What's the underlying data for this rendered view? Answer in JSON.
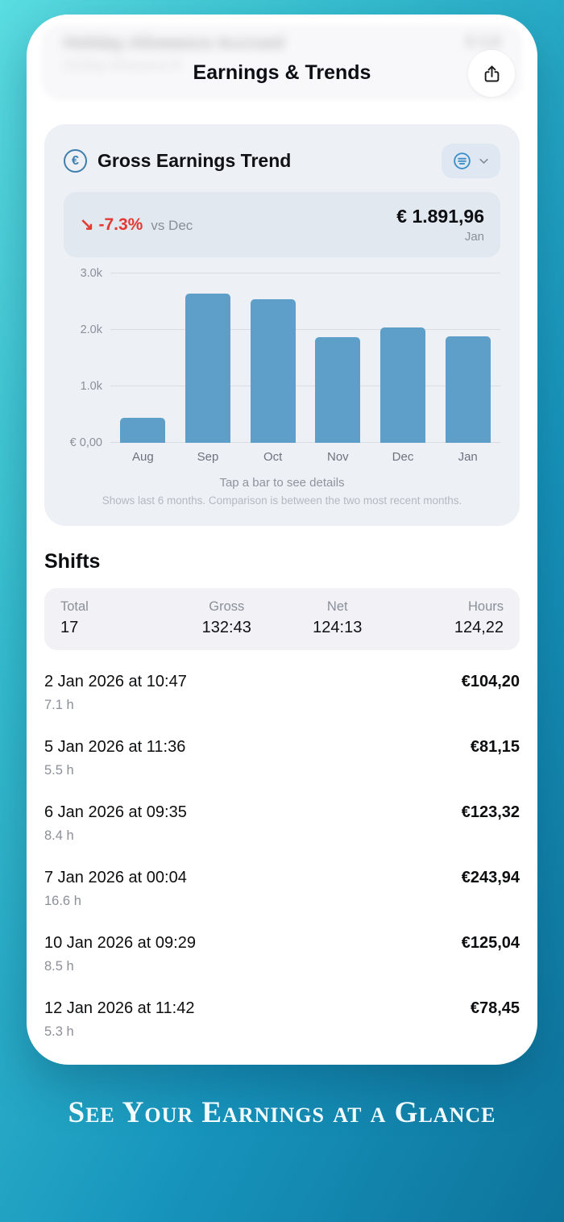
{
  "page": {
    "caption": "See Your Earnings at a Glance",
    "colors": {
      "background_gradient_start": "#5adde1",
      "background_gradient_end": "#0d739b",
      "bar": "#5d9fc9",
      "delta_negative": "#e23a33",
      "accent_blue": "#3d8fc8"
    }
  },
  "phone": {
    "nav": {
      "title": "Earnings & Trends",
      "blurred_item": {
        "title": "Holiday Allowance Accrued",
        "subtitle": "Holiday Allowance B",
        "amount_top": "€ 1.0",
        "amount_bottom": "€ 8"
      }
    },
    "trend_card": {
      "title": "Gross Earnings Trend",
      "euro_symbol": "€",
      "summary": {
        "delta_arrow": "↘",
        "delta": "-7.3%",
        "vs_label": "vs Dec",
        "amount": "€ 1.891,96",
        "period": "Jan"
      },
      "hint": "Tap a bar to see details",
      "note": "Shows last 6 months. Comparison is between the two most recent months."
    },
    "chart_data": {
      "type": "bar",
      "title": "Gross Earnings Trend",
      "categories": [
        "Aug",
        "Sep",
        "Oct",
        "Nov",
        "Dec",
        "Jan"
      ],
      "values": [
        450,
        2640,
        2550,
        1870,
        2040,
        1892
      ],
      "y_ticks": [
        {
          "label": "3.0k",
          "value": 3000
        },
        {
          "label": "2.0k",
          "value": 2000
        },
        {
          "label": "1.0k",
          "value": 1000
        },
        {
          "label": "€ 0,00",
          "value": 0
        }
      ],
      "ylim": [
        0,
        3000
      ],
      "grid": true,
      "legend": false,
      "bar_color": "#5d9fc9"
    },
    "shifts": {
      "heading": "Shifts",
      "summary_columns": [
        {
          "label": "Total",
          "value": "17",
          "align": "left"
        },
        {
          "label": "Gross",
          "value": "132:43",
          "align": "center"
        },
        {
          "label": "Net",
          "value": "124:13",
          "align": "center"
        },
        {
          "label": "Hours",
          "value": "124,22",
          "align": "right"
        }
      ],
      "rows": [
        {
          "datetime": "2 Jan 2026 at 10:47",
          "duration": "7.1 h",
          "amount": "€104,20"
        },
        {
          "datetime": "5 Jan 2026 at 11:36",
          "duration": "5.5 h",
          "amount": "€81,15"
        },
        {
          "datetime": "6 Jan 2026 at 09:35",
          "duration": "8.4 h",
          "amount": "€123,32"
        },
        {
          "datetime": "7 Jan 2026 at 00:04",
          "duration": "16.6 h",
          "amount": "€243,94"
        },
        {
          "datetime": "10 Jan 2026 at 09:29",
          "duration": "8.5 h",
          "amount": "€125,04"
        },
        {
          "datetime": "12 Jan 2026 at 11:42",
          "duration": "5.3 h",
          "amount": "€78,45"
        }
      ]
    }
  }
}
